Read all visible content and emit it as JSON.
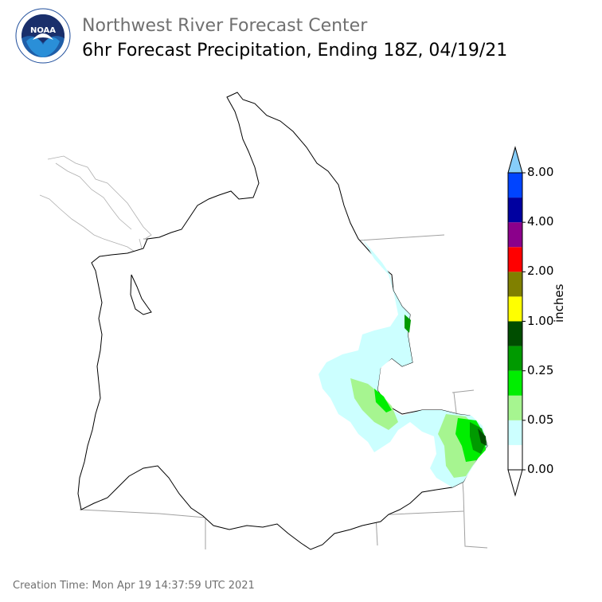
{
  "header": {
    "agency_logo": "noaa-logo",
    "logo_text": "NOAA",
    "logo_ring_text": "NATIONAL OCEANIC AND ATMOSPHERIC ADMINISTRATION",
    "title": "Northwest River Forecast Center",
    "subtitle": "6hr Forecast Precipitation, Ending 18Z, 04/19/21"
  },
  "legend": {
    "units": "inches",
    "tick_labels": [
      "0.00",
      "0.05",
      "0.25",
      "1.00",
      "2.00",
      "4.00",
      "8.00"
    ],
    "bins": [
      {
        "color": "#ffffff"
      },
      {
        "color": "#ccffff"
      },
      {
        "color": "#a6f590"
      },
      {
        "color": "#00ee00"
      },
      {
        "color": "#009a00"
      },
      {
        "color": "#004d00"
      },
      {
        "color": "#ffff00"
      },
      {
        "color": "#808000"
      },
      {
        "color": "#ff0000"
      },
      {
        "color": "#8b008b"
      },
      {
        "color": "#0000a0"
      },
      {
        "color": "#0044ff"
      }
    ],
    "over_color": "#87cefa",
    "under_color": "#ffffff"
  },
  "map": {
    "basemap_color": "#ffffff",
    "basin_outline_color": "#000000",
    "state_line_color": "#a0a0a0"
  },
  "footer": {
    "creation_time": "Creation Time: Mon Apr 19 14:37:59 UTC 2021"
  }
}
